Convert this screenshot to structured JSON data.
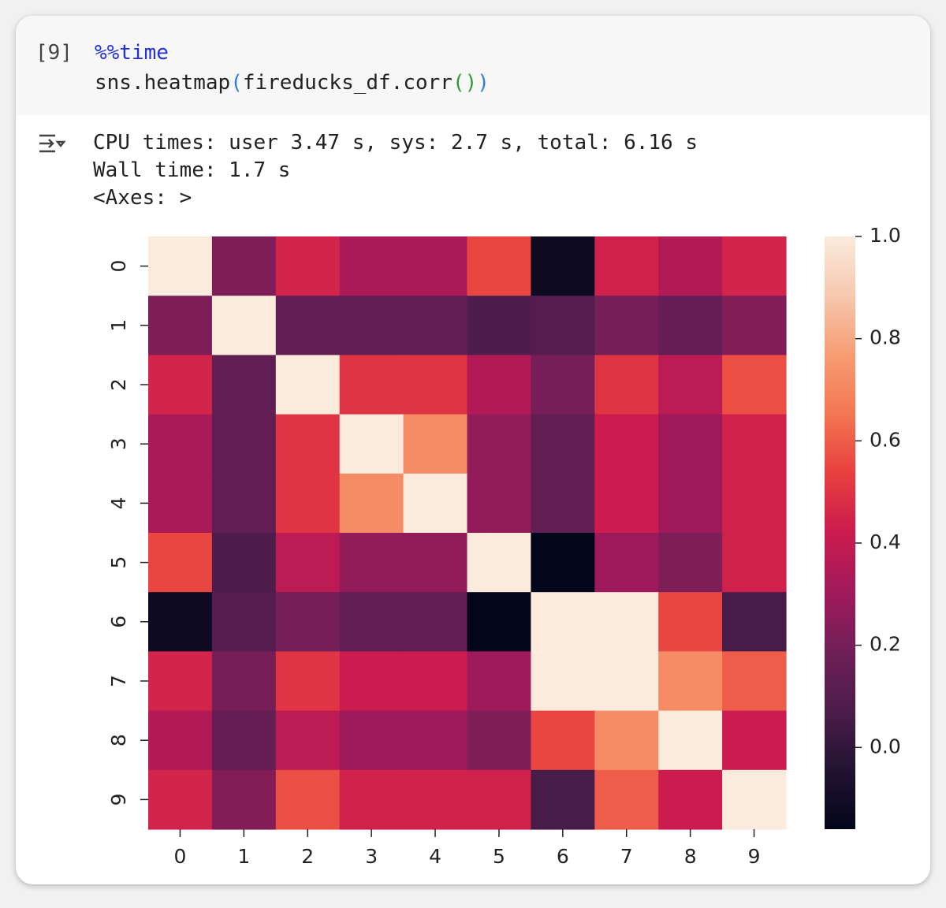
{
  "cell": {
    "prompt": "[9]",
    "code": [
      [
        {
          "text": "%%time",
          "color": "#2030e0"
        }
      ],
      [
        {
          "text": "sns.heatmap",
          "color": "#222222"
        },
        {
          "text": "(",
          "color": "#2f7de0"
        },
        {
          "text": "fireducks_df.corr",
          "color": "#222222"
        },
        {
          "text": "()",
          "color": "#2e9a3a"
        },
        {
          "text": ")",
          "color": "#2f7de0"
        }
      ]
    ]
  },
  "output": {
    "lines": [
      "CPU times: user 3.47 s, sys: 2.7 s, total: 6.16 s",
      "Wall time: 1.7 s",
      "<Axes: >"
    ]
  },
  "chart_data": {
    "type": "heatmap",
    "x": [
      "0",
      "1",
      "2",
      "3",
      "4",
      "5",
      "6",
      "7",
      "8",
      "9"
    ],
    "y": [
      "0",
      "1",
      "2",
      "3",
      "4",
      "5",
      "6",
      "7",
      "8",
      "9"
    ],
    "values": [
      [
        1,
        0.22,
        0.45,
        0.33,
        0.33,
        0.55,
        -0.12,
        0.44,
        0.35,
        0.45
      ],
      [
        0.22,
        1,
        0.14,
        0.14,
        0.14,
        0.08,
        0.1,
        0.2,
        0.15,
        0.23
      ],
      [
        0.45,
        0.14,
        1,
        0.5,
        0.5,
        0.35,
        0.2,
        0.5,
        0.38,
        0.57
      ],
      [
        0.33,
        0.14,
        0.5,
        1,
        0.72,
        0.27,
        0.14,
        0.42,
        0.3,
        0.44
      ],
      [
        0.33,
        0.14,
        0.5,
        0.72,
        1,
        0.27,
        0.14,
        0.42,
        0.3,
        0.44
      ],
      [
        0.55,
        0.08,
        0.38,
        0.27,
        0.27,
        1,
        -0.16,
        0.3,
        0.22,
        0.44
      ],
      [
        -0.12,
        0.1,
        0.2,
        0.14,
        0.14,
        -0.16,
        1,
        1,
        0.55,
        0.06
      ],
      [
        0.45,
        0.2,
        0.5,
        0.42,
        0.42,
        0.3,
        1,
        1,
        0.72,
        0.6
      ],
      [
        0.35,
        0.15,
        0.38,
        0.3,
        0.3,
        0.22,
        0.55,
        0.72,
        1,
        0.42
      ],
      [
        0.45,
        0.23,
        0.57,
        0.44,
        0.44,
        0.44,
        0.06,
        0.6,
        0.42,
        1
      ]
    ],
    "colorbar_lim": [
      -0.16,
      1.0
    ],
    "colorbar_ticks": [
      {
        "value": 0,
        "label": "0.0"
      },
      0.2,
      0.4,
      0.6,
      0.8,
      {
        "value": 1,
        "label": "1.0"
      }
    ],
    "colormap": [
      "#03051a",
      "#221331",
      "#4c1d4b",
      "#701f57",
      "#a11a5b",
      "#cb1b4f",
      "#e83f3f",
      "#f37651",
      "#f69c73",
      "#f6c8ae",
      "#faebdd"
    ]
  }
}
